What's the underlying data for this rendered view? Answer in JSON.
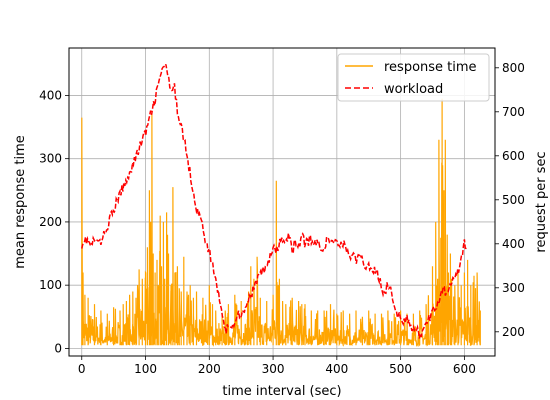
{
  "chart_data": {
    "type": "line",
    "title": "",
    "xlabel": "time interval (sec)",
    "ylabel_left": "mean response time",
    "ylabel_right": "request per sec",
    "xlim": [
      -20,
      648
    ],
    "ylim_left": [
      -12,
      475
    ],
    "ylim_right": [
      145,
      845
    ],
    "x_ticks": [
      0,
      100,
      200,
      300,
      400,
      500,
      600
    ],
    "y_ticks_left": [
      0,
      100,
      200,
      300,
      400
    ],
    "y_ticks_right": [
      200,
      300,
      400,
      500,
      600,
      700,
      800
    ],
    "grid": true,
    "legend_position": "top-right",
    "series": [
      {
        "name": "response time",
        "axis": "left",
        "color": "#ffa500",
        "style": "solid",
        "baseline": 5,
        "x": [
          0,
          2,
          5,
          10,
          20,
          30,
          40,
          50,
          60,
          65,
          70,
          75,
          80,
          85,
          90,
          95,
          100,
          103,
          106,
          108,
          110,
          112,
          115,
          118,
          120,
          123,
          125,
          128,
          130,
          133,
          136,
          140,
          143,
          146,
          150,
          153,
          156,
          160,
          165,
          170,
          175,
          180,
          190,
          200,
          205,
          210,
          215,
          220,
          225,
          230,
          240,
          250,
          260,
          265,
          270,
          275,
          280,
          290,
          300,
          305,
          308,
          310,
          315,
          320,
          330,
          340,
          345,
          350,
          360,
          370,
          380,
          390,
          400,
          410,
          420,
          430,
          440,
          450,
          460,
          470,
          480,
          490,
          500,
          510,
          520,
          530,
          540,
          550,
          555,
          558,
          560,
          563,
          565,
          568,
          570,
          573,
          575,
          578,
          580,
          585,
          590,
          595,
          600,
          605,
          610,
          615,
          620,
          625
        ],
        "peak": [
          365,
          120,
          85,
          80,
          70,
          60,
          55,
          65,
          60,
          70,
          75,
          85,
          90,
          80,
          125,
          110,
          120,
          160,
          250,
          200,
          370,
          150,
          120,
          140,
          100,
          210,
          130,
          200,
          110,
          215,
          150,
          100,
          255,
          120,
          130,
          95,
          90,
          145,
          90,
          100,
          80,
          90,
          80,
          100,
          70,
          60,
          40,
          55,
          60,
          70,
          85,
          75,
          75,
          130,
          110,
          145,
          80,
          75,
          85,
          265,
          100,
          110,
          75,
          70,
          80,
          75,
          70,
          70,
          60,
          60,
          60,
          70,
          55,
          60,
          55,
          60,
          50,
          60,
          55,
          55,
          60,
          55,
          60,
          55,
          55,
          60,
          70,
          130,
          200,
          110,
          330,
          175,
          395,
          250,
          330,
          180,
          120,
          150,
          110,
          100,
          120,
          100,
          120,
          140,
          100,
          115,
          120,
          60
        ]
      },
      {
        "name": "workload",
        "axis": "right",
        "color": "#ff0000",
        "style": "dashed",
        "x": [
          0,
          5,
          10,
          15,
          20,
          25,
          30,
          35,
          40,
          45,
          50,
          55,
          60,
          65,
          70,
          75,
          80,
          85,
          90,
          95,
          100,
          105,
          110,
          115,
          120,
          125,
          130,
          135,
          140,
          145,
          150,
          155,
          160,
          165,
          170,
          175,
          180,
          185,
          190,
          195,
          200,
          205,
          210,
          215,
          220,
          225,
          230,
          235,
          240,
          245,
          250,
          255,
          260,
          265,
          270,
          275,
          280,
          285,
          290,
          295,
          300,
          305,
          310,
          315,
          320,
          325,
          330,
          335,
          340,
          345,
          350,
          355,
          360,
          365,
          370,
          375,
          380,
          385,
          390,
          395,
          400,
          405,
          410,
          415,
          420,
          425,
          430,
          435,
          440,
          445,
          450,
          455,
          460,
          465,
          470,
          475,
          480,
          485,
          490,
          495,
          500,
          505,
          510,
          515,
          520,
          525,
          530,
          535,
          540,
          545,
          550,
          555,
          560,
          565,
          570,
          575,
          580,
          585,
          590,
          595,
          600,
          605
        ],
        "y": [
          400,
          410,
          405,
          395,
          410,
          400,
          405,
          420,
          440,
          460,
          470,
          500,
          510,
          530,
          540,
          565,
          580,
          600,
          615,
          640,
          650,
          680,
          700,
          730,
          760,
          790,
          810,
          780,
          740,
          760,
          700,
          680,
          640,
          600,
          560,
          520,
          480,
          460,
          440,
          400,
          380,
          350,
          320,
          280,
          250,
          200,
          220,
          200,
          230,
          240,
          240,
          250,
          270,
          280,
          300,
          320,
          330,
          340,
          350,
          370,
          390,
          380,
          400,
          410,
          400,
          420,
          380,
          410,
          390,
          420,
          400,
          405,
          410,
          400,
          400,
          395,
          390,
          410,
          400,
          410,
          405,
          400,
          400,
          390,
          370,
          380,
          360,
          370,
          360,
          350,
          360,
          330,
          340,
          330,
          300,
          290,
          310,
          290,
          260,
          240,
          240,
          220,
          230,
          210,
          200,
          210,
          190,
          200,
          215,
          230,
          240,
          260,
          270,
          300,
          290,
          300,
          320,
          330,
          340,
          360,
          400,
          380
        ]
      }
    ]
  }
}
